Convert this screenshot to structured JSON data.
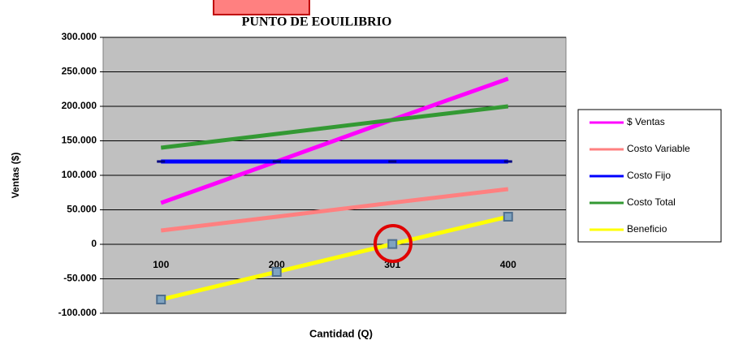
{
  "chart_data": {
    "type": "line",
    "title": "PUNTO DE EOUILIBRIO",
    "x_label": "Cantidad (Q)",
    "y_label": "Ventas ($)",
    "categories": [
      "100",
      "200",
      "301",
      "400"
    ],
    "series": [
      {
        "name": "$ Ventas",
        "color": "#ff00ff",
        "values": [
          60000,
          120000,
          180600,
          240000
        ]
      },
      {
        "name": "Costo Variable",
        "color": "#ff8080",
        "values": [
          20000,
          40000,
          60200,
          80000
        ]
      },
      {
        "name": "Costo Fijo",
        "color": "#0000ff",
        "values": [
          120000,
          120000,
          120000,
          120000
        ]
      },
      {
        "name": "Costo Total",
        "color": "#339933",
        "values": [
          140000,
          160000,
          180200,
          200000
        ]
      },
      {
        "name": "Beneficio",
        "color": "#ffff00",
        "values": [
          -80000,
          -40000,
          400,
          40000
        ]
      }
    ],
    "ylim": [
      -100000,
      300000
    ],
    "yticks": [
      {
        "value": -100000,
        "label": "-100.000"
      },
      {
        "value": -50000,
        "label": "-50.000"
      },
      0,
      {
        "value": 50000,
        "label": "50.000"
      },
      {
        "value": 100000,
        "label": "100.000"
      },
      {
        "value": 150000,
        "label": "150.000"
      },
      {
        "value": 200000,
        "label": "200.000"
      },
      {
        "value": 250000,
        "label": "250.000"
      },
      {
        "value": 300000,
        "label": "300.000"
      }
    ],
    "grid": true,
    "legend": "right"
  }
}
